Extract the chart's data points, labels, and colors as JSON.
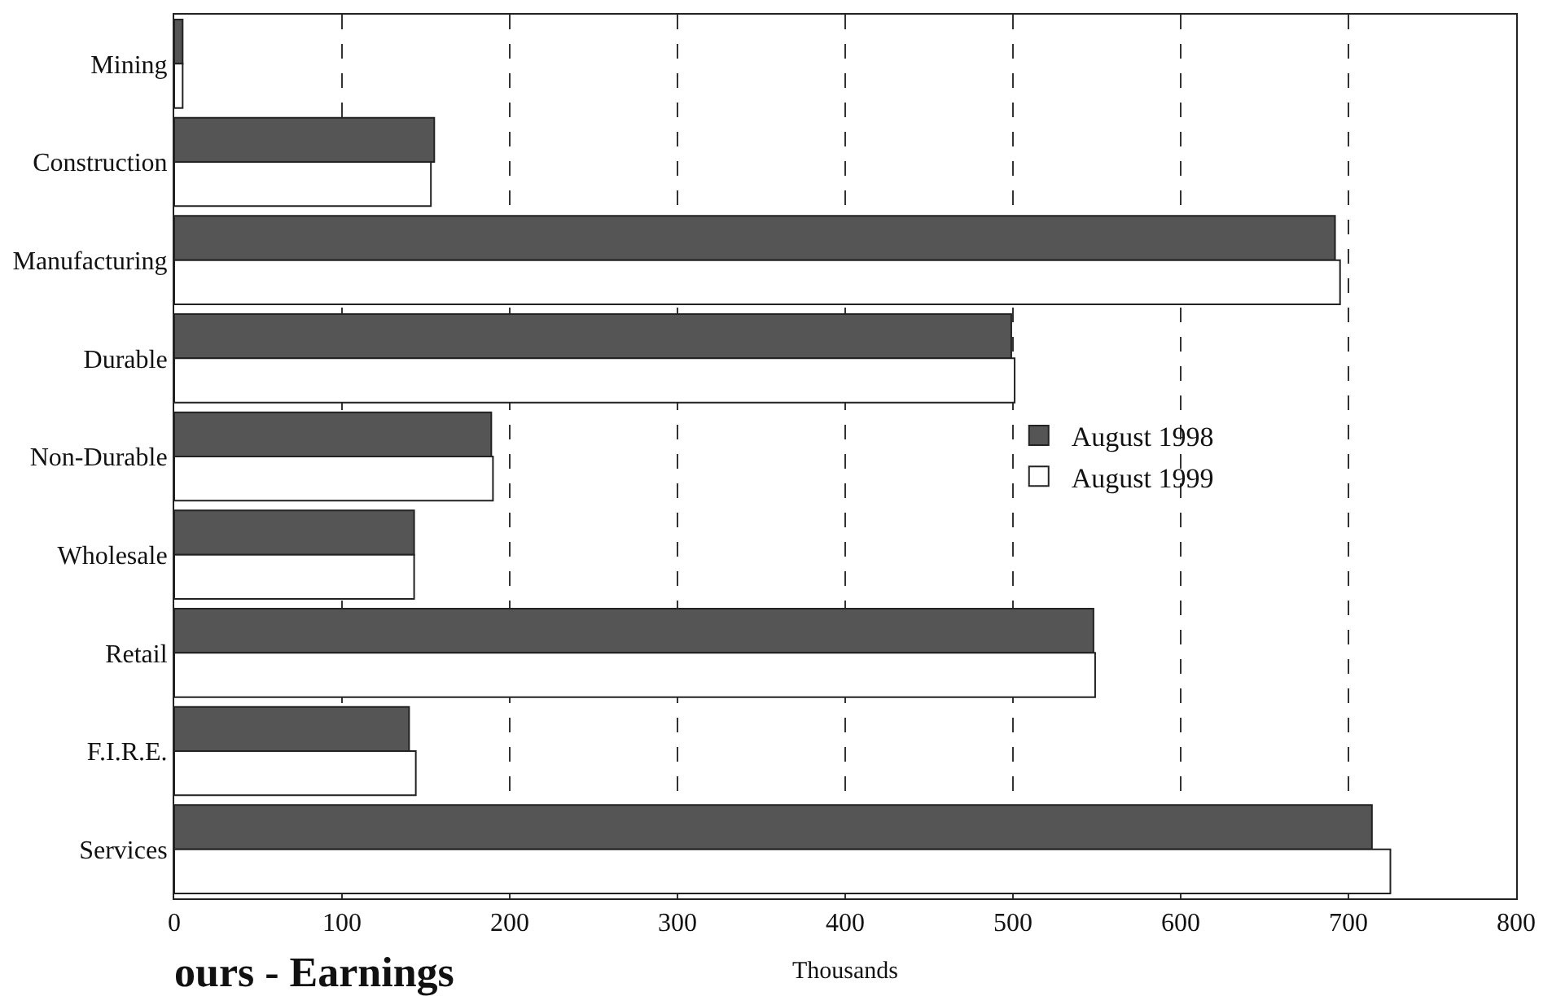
{
  "chart_data": {
    "type": "bar",
    "orientation": "horizontal",
    "title": "ours - Earnings",
    "xlabel": "Thousands",
    "categories": [
      "Mining",
      "Construction",
      "Manufacturing",
      "Durable",
      "Non-Durable",
      "Wholesale",
      "Retail",
      "F.I.R.E.",
      "Services"
    ],
    "series": [
      {
        "name": "August 1998",
        "color": "#555555",
        "values": [
          5,
          155,
          692,
          499,
          189,
          143,
          548,
          140,
          714
        ]
      },
      {
        "name": "August 1999",
        "color": "#ffffff",
        "values": [
          5,
          153,
          695,
          501,
          190,
          143,
          549,
          144,
          725
        ]
      }
    ],
    "xlim": [
      0,
      800
    ],
    "xticks": [
      0,
      100,
      200,
      300,
      400,
      500,
      600,
      700,
      800
    ],
    "grid": "x",
    "legend": "right"
  }
}
